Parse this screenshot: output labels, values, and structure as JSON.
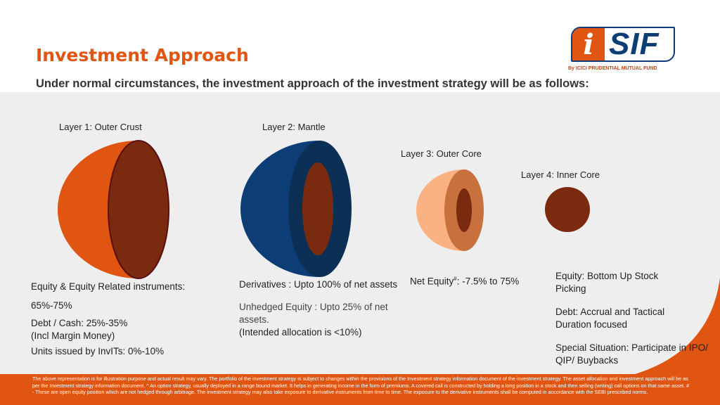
{
  "header": {
    "title": "Investment Approach",
    "subtitle": "Under normal circumstances, the investment approach of the investment strategy will be as follows:"
  },
  "logo": {
    "mark_i": "i",
    "mark_sif": "SIF",
    "tagline": "By ICICI PRUDENTIAL MUTUAL FUND"
  },
  "layers": [
    {
      "label": "Layer 1: Outer Crust",
      "lines": [
        "Equity & Equity Related instruments:",
        "65%-75%",
        "Debt / Cash: 25%-35%",
        "(Incl Margin Money)",
        "Units issued by InvITs: 0%-10%"
      ]
    },
    {
      "label": "Layer 2: Mantle",
      "lines": [
        "Derivatives : Upto 100% of net assets",
        "Unhedged Equity : Upto 25% of net assets.",
        "(Intended allocation is <10%)"
      ]
    },
    {
      "label": "Layer 3: Outer Core",
      "net_equity_prefix": "Net Equity",
      "net_equity_sup": "#",
      "net_equity_value": ": -7.5% to 75%"
    },
    {
      "label": "Layer 4: Inner Core",
      "lines": [
        "Equity: Bottom Up Stock Picking",
        "Debt: Accrual and Tactical Duration focused",
        "Special Situation: Participate in IPO/ QIP/ Buybacks"
      ]
    }
  ],
  "footer": {
    "disclaimer": "The above representation is for illustration purpose and actual result may vary. The portfolio of the investment strategy is subject to changes within the provisions of the Investment strategy information document of the investment strategy. The asset allocation and investment approach will be as per the Investment strategy information document. ^ An option strategy, usually deployed in a range bound market. It helps in generating income in the form of premiums. A covered call is constructed by holding a long position in a stock and then selling (writing) call options on that same asset. # - These are open equity position which are not hedged through arbitrage. The investment strategy may also take exposure to derivative instruments from time to time. The exposure to the derivative instruments shall be computed in accordance with the SEBI prescribed norms."
  },
  "colors": {
    "brand_orange": "#e05512",
    "brand_blue": "#0d3d75",
    "core_brown": "#7a2a0e"
  }
}
